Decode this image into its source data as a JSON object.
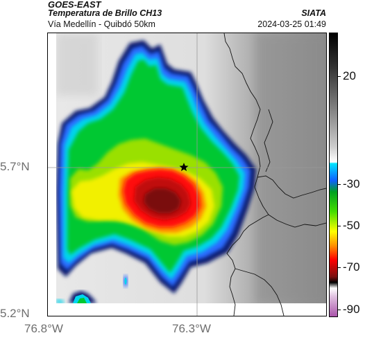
{
  "header": {
    "title": "GOES-EAST",
    "subtitle": "Temperatura de Brillo CH13",
    "org": "SIATA",
    "place": "Vía Medellín - Quibdó 50km",
    "datetime": "2024-03-25 01:49"
  },
  "map": {
    "lat_labels": [
      "5.7°N",
      "5.2°N"
    ],
    "lon_labels": [
      "76.8°W",
      "76.3°W"
    ],
    "grid": true,
    "marker": "star-icon",
    "gridline_color": "#9a9a9a",
    "border_color": "#000000"
  },
  "colorbar": {
    "labels": [
      "20",
      "-30",
      "-50",
      "-70",
      "-90"
    ],
    "unit_values": [
      20,
      -30,
      -50,
      -70,
      -90
    ],
    "scale_colors": [
      "#aa55aa",
      "#ffffff",
      "#7a1010",
      "#ff0000",
      "#ffff00",
      "#00cc00",
      "#1060ff",
      "#00e5ff",
      "#ffffff",
      "#000000"
    ]
  }
}
